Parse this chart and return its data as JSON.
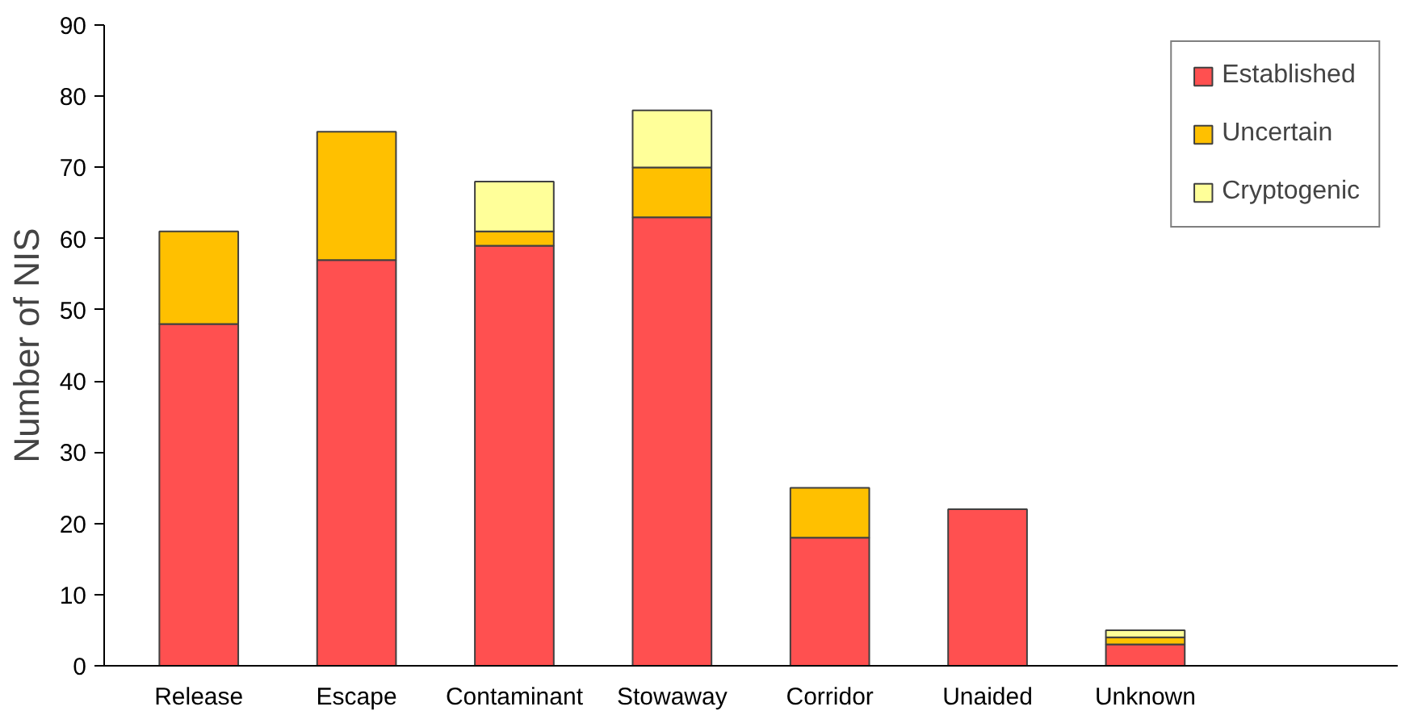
{
  "chart_data": {
    "type": "bar",
    "stacked": true,
    "ylabel": "Number of NIS",
    "categories": [
      "Release",
      "Escape",
      "Contaminant",
      "Stowaway",
      "Corridor",
      "Unaided",
      "Unknown"
    ],
    "series": [
      {
        "name": "Established",
        "color": "#ff5050",
        "values": [
          48,
          57,
          59,
          63,
          18,
          22,
          3
        ]
      },
      {
        "name": "Uncertain",
        "color": "#ffc000",
        "values": [
          13,
          18,
          2,
          7,
          7,
          0,
          1
        ]
      },
      {
        "name": "Cryptogenic",
        "color": "#ffff99",
        "values": [
          0,
          0,
          7,
          8,
          0,
          0,
          1
        ]
      }
    ],
    "ylim": [
      0,
      90
    ],
    "yticks": [
      0,
      10,
      20,
      30,
      40,
      50,
      60,
      70,
      80,
      90
    ],
    "grid": false,
    "legend": "top right"
  }
}
